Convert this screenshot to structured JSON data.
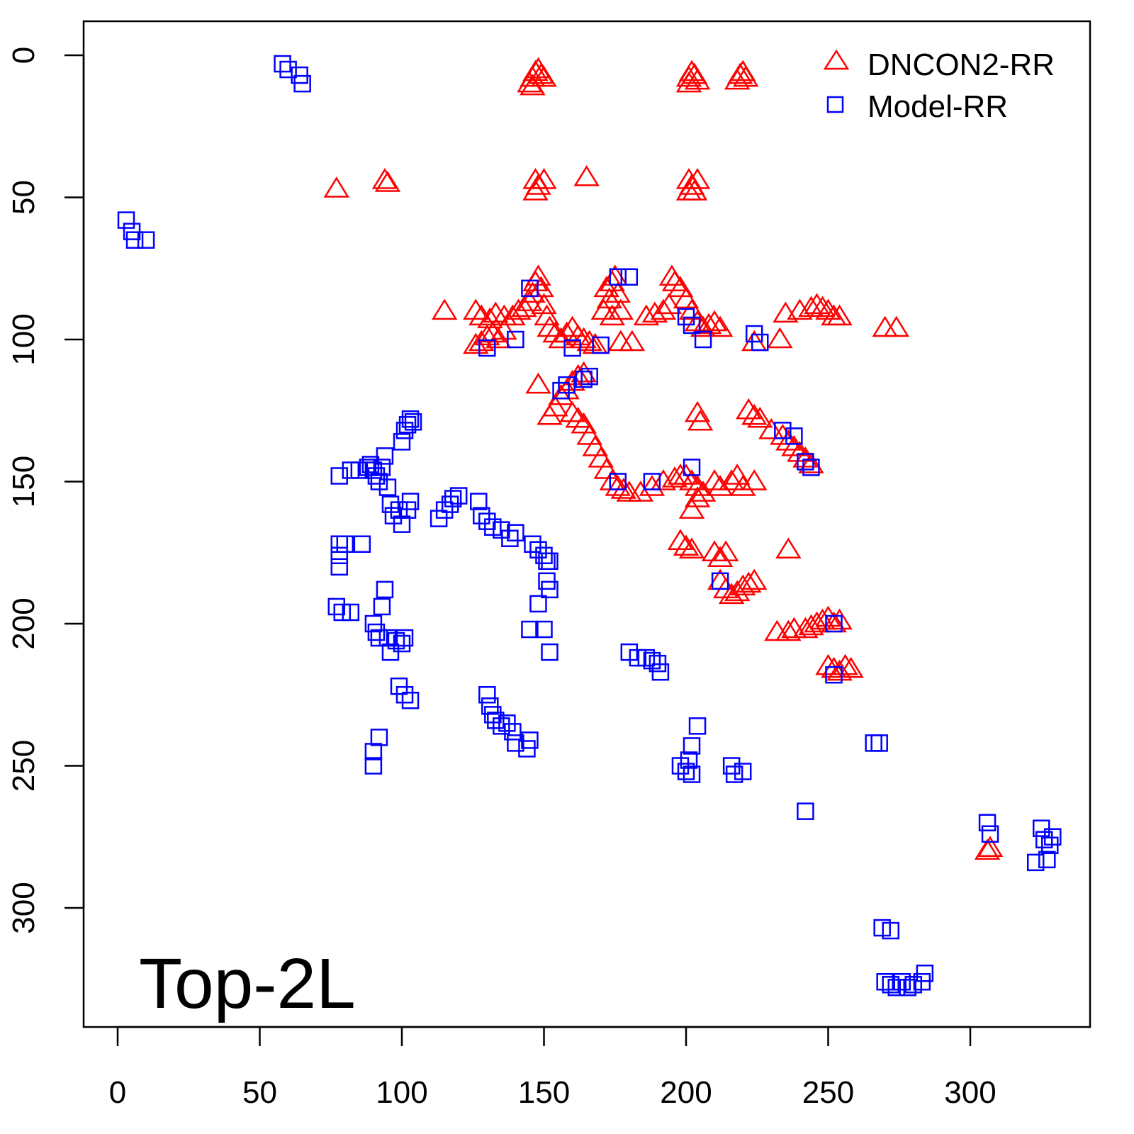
{
  "chart_data": {
    "type": "scatter",
    "title": "",
    "annotation": "Top-2L",
    "xlabel": "",
    "ylabel": "",
    "xlim": [
      -12,
      342
    ],
    "ylim": [
      -12,
      342
    ],
    "y_inverted": true,
    "grid": false,
    "legend_position": "top-right",
    "xticks": [
      "0",
      "50",
      "100",
      "150",
      "200",
      "250",
      "300"
    ],
    "yticks": [
      "0",
      "50",
      "100",
      "150",
      "200",
      "250",
      "300"
    ],
    "series": [
      {
        "name": "DNCON2-RR",
        "marker": "triangle",
        "color": "#ff0000",
        "points": [
          [
            146,
            8
          ],
          [
            147,
            6
          ],
          [
            148,
            5
          ],
          [
            149,
            7
          ],
          [
            150,
            8
          ],
          [
            145,
            10
          ],
          [
            146,
            11
          ],
          [
            201,
            8
          ],
          [
            202,
            6
          ],
          [
            203,
            7
          ],
          [
            204,
            9
          ],
          [
            201,
            10
          ],
          [
            218,
            9
          ],
          [
            219,
            7
          ],
          [
            220,
            6
          ],
          [
            221,
            8
          ],
          [
            77,
            47
          ],
          [
            94,
            44
          ],
          [
            95,
            45
          ],
          [
            147,
            44
          ],
          [
            148,
            46
          ],
          [
            150,
            44
          ],
          [
            147,
            48
          ],
          [
            165,
            43
          ],
          [
            201,
            44
          ],
          [
            202,
            46
          ],
          [
            203,
            48
          ],
          [
            204,
            44
          ],
          [
            201,
            48
          ],
          [
            115,
            90
          ],
          [
            126,
            90
          ],
          [
            128,
            92
          ],
          [
            131,
            93
          ],
          [
            133,
            91
          ],
          [
            136,
            92
          ],
          [
            139,
            92
          ],
          [
            141,
            90
          ],
          [
            143,
            89
          ],
          [
            145,
            87
          ],
          [
            146,
            84
          ],
          [
            147,
            80
          ],
          [
            148,
            78
          ],
          [
            149,
            82
          ],
          [
            150,
            88
          ],
          [
            151,
            92
          ],
          [
            152,
            96
          ],
          [
            154,
            98
          ],
          [
            156,
            100
          ],
          [
            158,
            98
          ],
          [
            160,
            96
          ],
          [
            162,
            99
          ],
          [
            164,
            100
          ],
          [
            166,
            101
          ],
          [
            168,
            102
          ],
          [
            126,
            102
          ],
          [
            128,
            101
          ],
          [
            130,
            99
          ],
          [
            132,
            98
          ],
          [
            134,
            100
          ],
          [
            136,
            97
          ],
          [
            172,
            82
          ],
          [
            173,
            86
          ],
          [
            174,
            80
          ],
          [
            175,
            78
          ],
          [
            176,
            84
          ],
          [
            171,
            90
          ],
          [
            174,
            92
          ],
          [
            177,
            90
          ],
          [
            177,
            101
          ],
          [
            181,
            101
          ],
          [
            186,
            92
          ],
          [
            189,
            91
          ],
          [
            192,
            90
          ],
          [
            194,
            88
          ],
          [
            195,
            78
          ],
          [
            196,
            80
          ],
          [
            198,
            82
          ],
          [
            200,
            86
          ],
          [
            202,
            90
          ],
          [
            204,
            94
          ],
          [
            206,
            96
          ],
          [
            208,
            95
          ],
          [
            210,
            94
          ],
          [
            212,
            96
          ],
          [
            224,
            101
          ],
          [
            233,
            100
          ],
          [
            235,
            91
          ],
          [
            240,
            90
          ],
          [
            244,
            89
          ],
          [
            246,
            88
          ],
          [
            248,
            89
          ],
          [
            250,
            90
          ],
          [
            252,
            92
          ],
          [
            254,
            92
          ],
          [
            270,
            96
          ],
          [
            274,
            96
          ],
          [
            148,
            116
          ],
          [
            152,
            127
          ],
          [
            154,
            124
          ],
          [
            156,
            120
          ],
          [
            158,
            118
          ],
          [
            160,
            115
          ],
          [
            162,
            113
          ],
          [
            164,
            112
          ],
          [
            160,
            126
          ],
          [
            162,
            128
          ],
          [
            164,
            130
          ],
          [
            166,
            134
          ],
          [
            168,
            138
          ],
          [
            170,
            142
          ],
          [
            172,
            146
          ],
          [
            174,
            150
          ],
          [
            176,
            152
          ],
          [
            178,
            153
          ],
          [
            180,
            154
          ],
          [
            184,
            154
          ],
          [
            188,
            152
          ],
          [
            192,
            150
          ],
          [
            196,
            149
          ],
          [
            198,
            148
          ],
          [
            200,
            148
          ],
          [
            202,
            150
          ],
          [
            204,
            152
          ],
          [
            206,
            154
          ],
          [
            210,
            150
          ],
          [
            212,
            152
          ],
          [
            216,
            150
          ],
          [
            218,
            148
          ],
          [
            220,
            152
          ],
          [
            224,
            150
          ],
          [
            202,
            160
          ],
          [
            204,
            156
          ],
          [
            204,
            126
          ],
          [
            205,
            129
          ],
          [
            222,
            125
          ],
          [
            224,
            127
          ],
          [
            226,
            128
          ],
          [
            230,
            132
          ],
          [
            234,
            134
          ],
          [
            236,
            136
          ],
          [
            238,
            138
          ],
          [
            240,
            140
          ],
          [
            242,
            142
          ],
          [
            244,
            144
          ],
          [
            198,
            171
          ],
          [
            200,
            173
          ],
          [
            202,
            174
          ],
          [
            210,
            175
          ],
          [
            212,
            177
          ],
          [
            214,
            175
          ],
          [
            236,
            174
          ],
          [
            212,
            185
          ],
          [
            214,
            188
          ],
          [
            216,
            190
          ],
          [
            218,
            189
          ],
          [
            220,
            187
          ],
          [
            222,
            186
          ],
          [
            224,
            185
          ],
          [
            232,
            203
          ],
          [
            236,
            203
          ],
          [
            238,
            202
          ],
          [
            242,
            202
          ],
          [
            244,
            201
          ],
          [
            246,
            200
          ],
          [
            248,
            199
          ],
          [
            250,
            198
          ],
          [
            252,
            200
          ],
          [
            254,
            199
          ],
          [
            250,
            215
          ],
          [
            252,
            216
          ],
          [
            254,
            217
          ],
          [
            256,
            215
          ],
          [
            258,
            216
          ],
          [
            306,
            280
          ],
          [
            307,
            279
          ]
        ]
      },
      {
        "name": "Model-RR",
        "marker": "square",
        "color": "#0000ff",
        "points": [
          [
            58,
            3
          ],
          [
            60,
            5
          ],
          [
            64,
            7
          ],
          [
            65,
            10
          ],
          [
            3,
            58
          ],
          [
            5,
            62
          ],
          [
            6,
            65
          ],
          [
            10,
            65
          ],
          [
            78,
            148
          ],
          [
            82,
            146
          ],
          [
            85,
            146
          ],
          [
            88,
            145
          ],
          [
            89,
            144
          ],
          [
            90,
            146
          ],
          [
            91,
            148
          ],
          [
            92,
            150
          ],
          [
            93,
            145
          ],
          [
            94,
            141
          ],
          [
            95,
            152
          ],
          [
            96,
            158
          ],
          [
            97,
            162
          ],
          [
            99,
            160
          ],
          [
            100,
            165
          ],
          [
            102,
            160
          ],
          [
            103,
            157
          ],
          [
            100,
            136
          ],
          [
            101,
            132
          ],
          [
            102,
            130
          ],
          [
            103,
            128
          ],
          [
            104,
            129
          ],
          [
            78,
            172
          ],
          [
            78,
            176
          ],
          [
            78,
            180
          ],
          [
            80,
            172
          ],
          [
            86,
            172
          ],
          [
            77,
            194
          ],
          [
            79,
            196
          ],
          [
            82,
            196
          ],
          [
            90,
            200
          ],
          [
            91,
            203
          ],
          [
            92,
            205
          ],
          [
            93,
            194
          ],
          [
            94,
            188
          ],
          [
            95,
            205
          ],
          [
            96,
            210
          ],
          [
            98,
            206
          ],
          [
            100,
            207
          ],
          [
            101,
            205
          ],
          [
            99,
            222
          ],
          [
            101,
            225
          ],
          [
            103,
            227
          ],
          [
            90,
            245
          ],
          [
            90,
            250
          ],
          [
            92,
            240
          ],
          [
            113,
            163
          ],
          [
            115,
            160
          ],
          [
            117,
            158
          ],
          [
            118,
            156
          ],
          [
            120,
            155
          ],
          [
            127,
            157
          ],
          [
            128,
            162
          ],
          [
            130,
            164
          ],
          [
            132,
            166
          ],
          [
            135,
            167
          ],
          [
            138,
            170
          ],
          [
            140,
            168
          ],
          [
            146,
            172
          ],
          [
            148,
            174
          ],
          [
            150,
            176
          ],
          [
            151,
            178
          ],
          [
            152,
            178
          ],
          [
            151,
            185
          ],
          [
            152,
            188
          ],
          [
            148,
            193
          ],
          [
            150,
            202
          ],
          [
            145,
            202
          ],
          [
            152,
            210
          ],
          [
            130,
            225
          ],
          [
            131,
            229
          ],
          [
            132,
            232
          ],
          [
            133,
            234
          ],
          [
            135,
            236
          ],
          [
            137,
            235
          ],
          [
            139,
            238
          ],
          [
            140,
            242
          ],
          [
            144,
            244
          ],
          [
            145,
            241
          ],
          [
            180,
            210
          ],
          [
            183,
            212
          ],
          [
            186,
            212
          ],
          [
            188,
            213
          ],
          [
            190,
            214
          ],
          [
            191,
            217
          ],
          [
            198,
            250
          ],
          [
            200,
            252
          ],
          [
            201,
            248
          ],
          [
            202,
            243
          ],
          [
            202,
            253
          ],
          [
            204,
            236
          ],
          [
            216,
            250
          ],
          [
            217,
            253
          ],
          [
            220,
            252
          ],
          [
            242,
            266
          ],
          [
            266,
            242
          ],
          [
            268,
            242
          ],
          [
            306,
            270
          ],
          [
            307,
            274
          ],
          [
            323,
            284
          ],
          [
            325,
            272
          ],
          [
            326,
            276
          ],
          [
            327,
            283
          ],
          [
            328,
            278
          ],
          [
            329,
            275
          ],
          [
            269,
            307
          ],
          [
            272,
            308
          ],
          [
            270,
            326
          ],
          [
            272,
            327
          ],
          [
            274,
            328
          ],
          [
            276,
            326
          ],
          [
            278,
            328
          ],
          [
            280,
            327
          ],
          [
            283,
            326
          ],
          [
            284,
            323
          ],
          [
            130,
            103
          ],
          [
            140,
            100
          ],
          [
            145,
            82
          ],
          [
            160,
            103
          ],
          [
            170,
            102
          ],
          [
            176,
            78
          ],
          [
            180,
            78
          ],
          [
            200,
            92
          ],
          [
            202,
            95
          ],
          [
            206,
            100
          ],
          [
            224,
            98
          ],
          [
            226,
            101
          ],
          [
            234,
            132
          ],
          [
            238,
            134
          ],
          [
            242,
            143
          ],
          [
            244,
            145
          ],
          [
            156,
            118
          ],
          [
            158,
            116
          ],
          [
            164,
            114
          ],
          [
            166,
            113
          ],
          [
            202,
            145
          ],
          [
            212,
            185
          ],
          [
            252,
            200
          ],
          [
            252,
            218
          ],
          [
            188,
            150
          ],
          [
            176,
            150
          ]
        ]
      }
    ]
  }
}
